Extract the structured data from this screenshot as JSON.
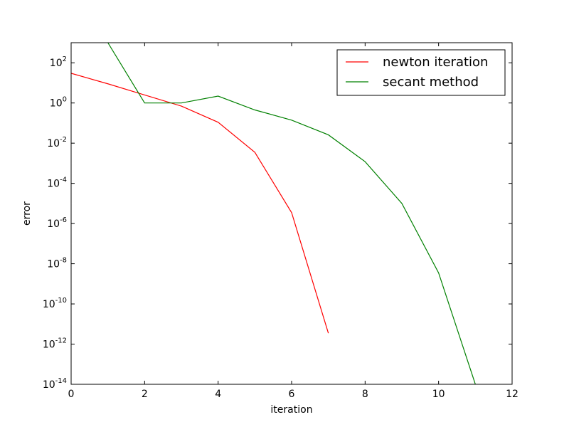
{
  "chart_data": {
    "type": "line",
    "xlabel": "iteration",
    "ylabel": "error",
    "xlim": [
      0,
      12
    ],
    "ylim": [
      1e-14,
      1000
    ],
    "yscale": "log",
    "grid": false,
    "legend_position": "top-right",
    "x_ticks": [
      0,
      2,
      4,
      6,
      8,
      10,
      12
    ],
    "y_tick_exponents": [
      -14,
      -12,
      -10,
      -8,
      -6,
      -4,
      -2,
      0,
      2
    ],
    "y_tick_base": "10",
    "series": [
      {
        "name": "newton iteration",
        "color": "#ff0000",
        "x": [
          0,
          1,
          2,
          3,
          4,
          5,
          6,
          7
        ],
        "y": [
          30,
          9,
          2.5,
          0.7,
          0.11,
          0.0035,
          3.5e-06,
          3.5e-12
        ]
      },
      {
        "name": "secant method",
        "color": "#008000",
        "x": [
          1,
          2,
          3,
          4,
          5,
          6,
          7,
          8,
          9,
          10,
          11
        ],
        "y": [
          1000,
          1,
          1,
          2.2,
          0.45,
          0.14,
          0.026,
          0.0012,
          1e-05,
          3.5e-09,
          1e-14
        ]
      }
    ]
  }
}
